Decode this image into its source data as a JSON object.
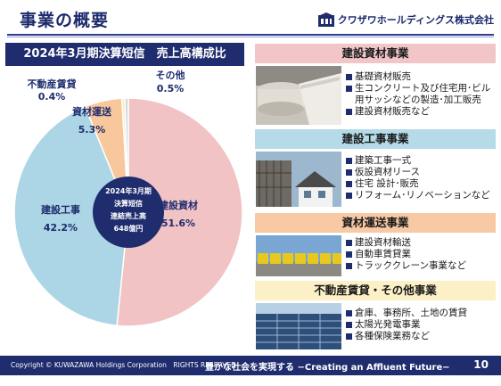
{
  "header": {
    "title": "事業の概要",
    "brand": "クワザワホールディングス株式会社"
  },
  "chart_heading": "2024年3月期決算短信　売上高構成比",
  "chart_data": {
    "type": "pie",
    "title": "2024年3月期決算短信　売上高構成比",
    "center_label": [
      "2024年3月期",
      "決算短信",
      "連結売上高",
      "648億円"
    ],
    "slices": [
      {
        "label": "建設資材",
        "value": 51.6,
        "display": "51.6%",
        "color": "#f2c3c4"
      },
      {
        "label": "建設工事",
        "value": 42.2,
        "display": "42.2%",
        "color": "#acd6e6"
      },
      {
        "label": "資材運送",
        "value": 5.3,
        "display": "5.3%",
        "color": "#f8c89c"
      },
      {
        "label": "不動産賃貸",
        "value": 0.4,
        "display": "0.4%",
        "color": "#f7eda8"
      },
      {
        "label": "その他",
        "value": 0.5,
        "display": "0.5%",
        "color": "#d0d8e8"
      }
    ]
  },
  "sections": [
    {
      "title": "建設資材事業",
      "items": [
        "基礎資材販売",
        "生コンクリート及び住宅用･ビル用サッシなどの製造･加工販売",
        "建設資材販売など"
      ]
    },
    {
      "title": "建設工事事業",
      "items": [
        "建築工事一式",
        "仮設資材リース",
        "住宅 設計･販売",
        "リフォーム･リノベーションなど"
      ]
    },
    {
      "title": "資材運送事業",
      "items": [
        "建設資材輸送",
        "自動車賃貸業",
        "トラッククレーン事業など"
      ]
    },
    {
      "title": "不動産賃貸・その他事業",
      "items": [
        "倉庫、事務所、土地の賃貸",
        "太陽光発電事業",
        "各種保険業務など"
      ]
    }
  ],
  "footer": {
    "copyright": "Copyright © KUWAZAWA Holdings Corporation　RIGHTS RESERVED",
    "slogan": "豊かな社会を実現する −Creating an Affluent Future−",
    "page": "10"
  }
}
